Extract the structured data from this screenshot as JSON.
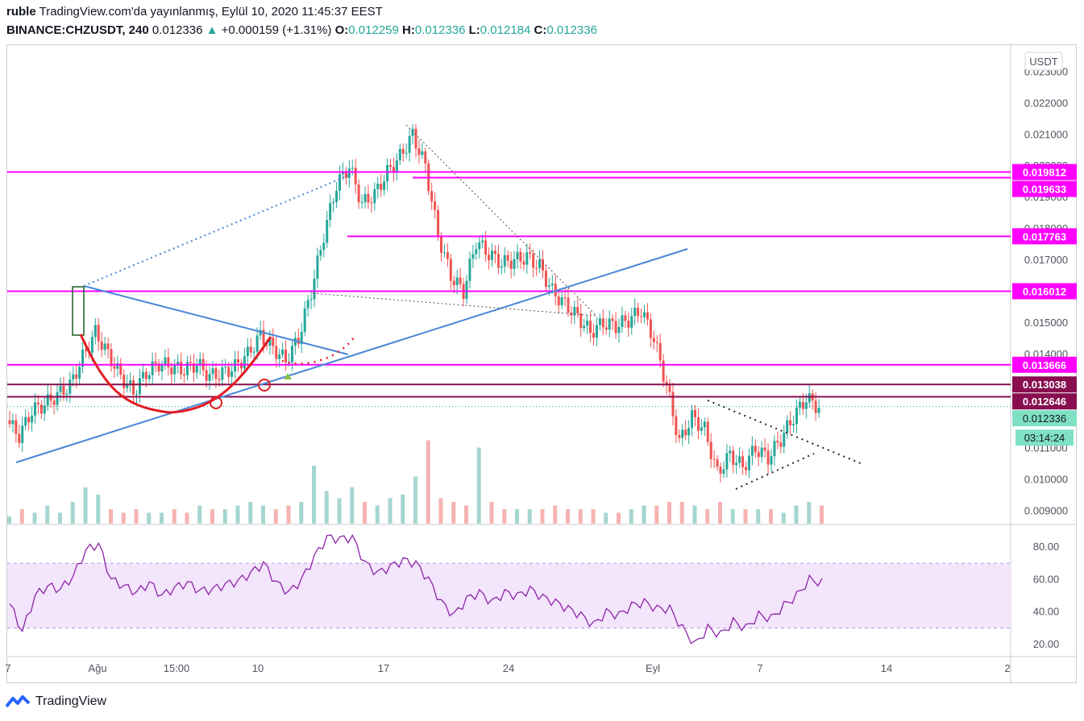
{
  "header": {
    "author": "ruble",
    "published": "TradingView.com'da yayınlanmış, Eylül 10, 2020 11:45:37 EEST",
    "symbol": "BINANCE:CHZUSDT, 240",
    "last": "0.012336",
    "change": "+0.000159 (+1.31%)",
    "o_label": "O:",
    "o": "0.012259",
    "h_label": "H:",
    "h": "0.012336",
    "l_label": "L:",
    "l": "0.012184",
    "c_label": "C:",
    "c": "0.012336"
  },
  "currency": "USDT",
  "countdown": "03:14:24",
  "brand": "TradingView",
  "colors": {
    "up": "#26a69a",
    "down": "#ef5350",
    "level": "#ff00ff",
    "level_dark": "#880e4f",
    "trend": "#4a86d8",
    "cup": "#e31b23",
    "rsi": "#8e24aa",
    "rsi_band": "#f3e5fb"
  },
  "chart_data": [
    {
      "type": "candlestick",
      "title": "BINANCE:CHZUSDT, 240",
      "price_axis": {
        "ylim": [
          0.0086,
          0.0235
        ],
        "ticks": [
          "0.023000",
          "0.022000",
          "0.021000",
          "0.020000",
          "0.019000",
          "0.018000",
          "0.017000",
          "0.016000",
          "0.015000",
          "0.014000",
          "0.013000",
          "0.012000",
          "0.011000",
          "0.010000",
          "0.009000"
        ]
      },
      "time_axis": {
        "ticks": [
          "7",
          "Ağu",
          "15:00",
          "10",
          "17",
          "24",
          "Eyl",
          "7",
          "14",
          "2"
        ]
      },
      "horizontal_levels": [
        {
          "label": "0.019812",
          "value": 0.019812,
          "color": "#ff00ff"
        },
        {
          "label": "0.019633",
          "value": 0.019633,
          "color": "#ff00ff"
        },
        {
          "label": "0.017763",
          "value": 0.017763,
          "color": "#ff00ff"
        },
        {
          "label": "0.016012",
          "value": 0.016012,
          "color": "#ff00ff"
        },
        {
          "label": "0.013666",
          "value": 0.013666,
          "color": "#ff00ff"
        },
        {
          "label": "0.013038",
          "value": 0.013038,
          "color": "#880e4f"
        },
        {
          "label": "0.012646",
          "value": 0.012646,
          "color": "#880e4f"
        }
      ],
      "last_price": {
        "label": "0.012336",
        "value": 0.012336
      },
      "price_path": [
        0.0119,
        0.0114,
        0.0122,
        0.0124,
        0.0127,
        0.013,
        0.0139,
        0.0147,
        0.014,
        0.0133,
        0.0128,
        0.0134,
        0.0137,
        0.0136,
        0.0135,
        0.0137,
        0.0133,
        0.0134,
        0.0136,
        0.014,
        0.0146,
        0.0142,
        0.0138,
        0.0145,
        0.016,
        0.0178,
        0.0194,
        0.02,
        0.0188,
        0.0191,
        0.0198,
        0.0203,
        0.021,
        0.02,
        0.0178,
        0.0165,
        0.016,
        0.0176,
        0.0172,
        0.0169,
        0.017,
        0.0171,
        0.0168,
        0.016,
        0.0156,
        0.0152,
        0.0147,
        0.015,
        0.0149,
        0.0151,
        0.0154,
        0.0145,
        0.013,
        0.0112,
        0.012,
        0.0116,
        0.0102,
        0.0108,
        0.0104,
        0.011,
        0.0107,
        0.0113,
        0.012,
        0.0126,
        0.0123
      ],
      "volume_bars": [
        0.2,
        0.4,
        0.3,
        0.5,
        0.3,
        0.6,
        1.0,
        0.8,
        0.4,
        0.3,
        0.4,
        0.3,
        0.3,
        0.4,
        0.3,
        0.5,
        0.4,
        0.4,
        0.5,
        0.6,
        0.5,
        0.4,
        0.5,
        0.6,
        1.6,
        0.9,
        0.7,
        1.0,
        0.6,
        0.5,
        0.7,
        0.8,
        1.3,
        2.3,
        0.7,
        0.6,
        0.5,
        2.1,
        0.6,
        0.4,
        0.4,
        0.4,
        0.4,
        0.5,
        0.4,
        0.4,
        0.4,
        0.3,
        0.3,
        0.4,
        0.5,
        0.5,
        0.6,
        0.6,
        0.5,
        0.4,
        0.6,
        0.4,
        0.4,
        0.4,
        0.4,
        0.3,
        0.5,
        0.6,
        0.5
      ]
    },
    {
      "type": "line",
      "title": "",
      "ylim": [
        14,
        92
      ],
      "ticks": [
        "80.00",
        "60.00",
        "40.00",
        "20.00"
      ],
      "band": [
        30,
        70
      ],
      "rsi": [
        45,
        28,
        50,
        56,
        54,
        62,
        78,
        82,
        60,
        56,
        52,
        58,
        50,
        55,
        58,
        53,
        54,
        57,
        59,
        64,
        70,
        58,
        52,
        60,
        74,
        86,
        85,
        86,
        70,
        64,
        68,
        72,
        70,
        60,
        46,
        38,
        48,
        52,
        46,
        52,
        50,
        54,
        49,
        46,
        42,
        38,
        32,
        40,
        38,
        44,
        46,
        42,
        42,
        30,
        20,
        30,
        26,
        34,
        30,
        38,
        36,
        44,
        50,
        60,
        58
      ]
    }
  ]
}
